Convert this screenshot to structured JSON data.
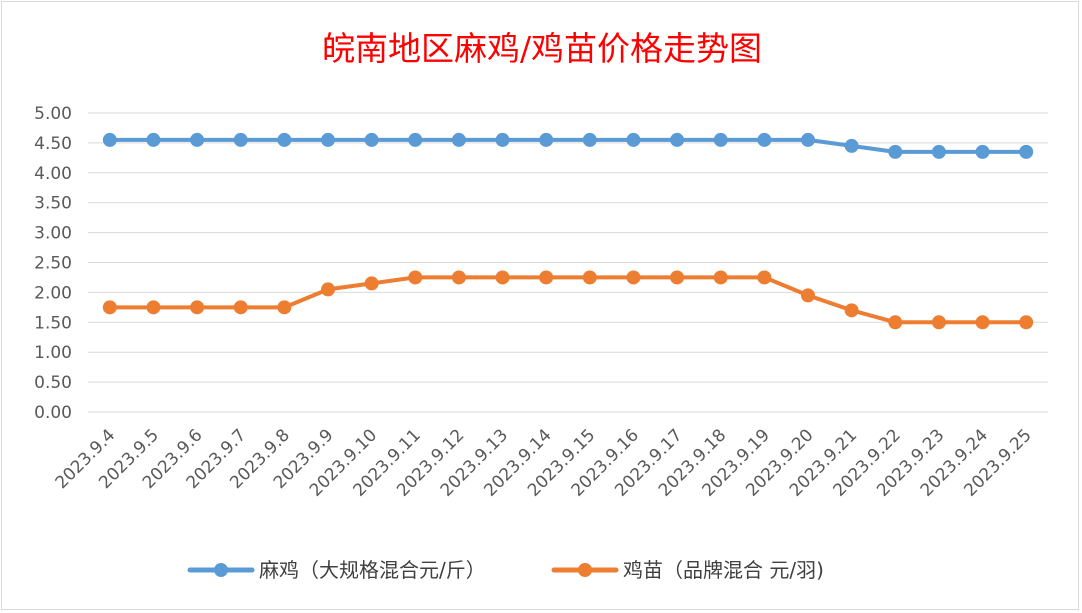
{
  "colors": {
    "series_1": "#5b9bd5",
    "series_2": "#ed7d31",
    "title": "#ff0000",
    "gridline": "#d9d9d9",
    "tick_text": "#595959"
  },
  "chart_data": {
    "type": "line",
    "title": "皖南地区麻鸡/鸡苗价格走势图",
    "xlabel": "",
    "ylabel": "",
    "ylim": [
      0,
      5
    ],
    "y_ticks": [
      "0.00",
      "0.50",
      "1.00",
      "1.50",
      "2.00",
      "2.50",
      "3.00",
      "3.50",
      "4.00",
      "4.50",
      "5.00"
    ],
    "grid": true,
    "legend_position": "bottom",
    "categories": [
      "2023.9.4",
      "2023.9.5",
      "2023.9.6",
      "2023.9.7",
      "2023.9.8",
      "2023.9.9",
      "2023.9.10",
      "2023.9.11",
      "2023.9.12",
      "2023.9.13",
      "2023.9.14",
      "2023.9.15",
      "2023.9.16",
      "2023.9.17",
      "2023.9.18",
      "2023.9.19",
      "2023.9.20",
      "2023.9.21",
      "2023.9.22",
      "2023.9.23",
      "2023.9.24",
      "2023.9.25"
    ],
    "series": [
      {
        "name": "麻鸡（大规格混合元/斤）",
        "values": [
          4.55,
          4.55,
          4.55,
          4.55,
          4.55,
          4.55,
          4.55,
          4.55,
          4.55,
          4.55,
          4.55,
          4.55,
          4.55,
          4.55,
          4.55,
          4.55,
          4.55,
          4.45,
          4.35,
          4.35,
          4.35,
          4.35
        ]
      },
      {
        "name": "鸡苗（品牌混合 元/羽)",
        "values": [
          1.75,
          1.75,
          1.75,
          1.75,
          1.75,
          2.05,
          2.15,
          2.25,
          2.25,
          2.25,
          2.25,
          2.25,
          2.25,
          2.25,
          2.25,
          2.25,
          1.95,
          1.7,
          1.5,
          1.5,
          1.5,
          1.5
        ]
      }
    ]
  }
}
